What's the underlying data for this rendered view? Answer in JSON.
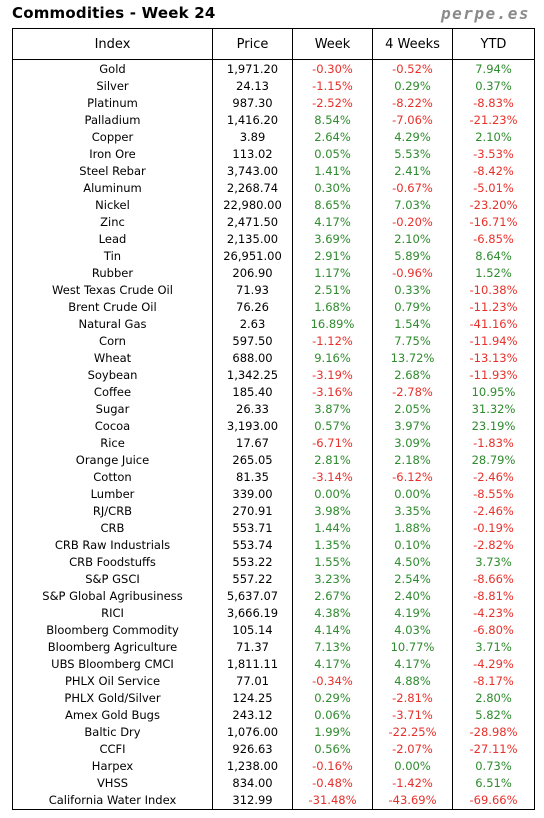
{
  "title": "Commodities - Week 24",
  "brand": "perpe.es",
  "colors": {
    "positive": "#2e8b2e",
    "negative": "#e8302a"
  },
  "headers": [
    "Index",
    "Price",
    "Week",
    "4 Weeks",
    "YTD"
  ],
  "rows": [
    [
      "Gold",
      "1,971.20",
      "-0.30%",
      "-0.52%",
      "7.94%"
    ],
    [
      "Silver",
      "24.13",
      "-1.15%",
      "0.29%",
      "0.37%"
    ],
    [
      "Platinum",
      "987.30",
      "-2.52%",
      "-8.22%",
      "-8.83%"
    ],
    [
      "Palladium",
      "1,416.20",
      "8.54%",
      "-7.06%",
      "-21.23%"
    ],
    [
      "Copper",
      "3.89",
      "2.64%",
      "4.29%",
      "2.10%"
    ],
    [
      "Iron Ore",
      "113.02",
      "0.05%",
      "5.53%",
      "-3.53%"
    ],
    [
      "Steel Rebar",
      "3,743.00",
      "1.41%",
      "2.41%",
      "-8.42%"
    ],
    [
      "Aluminum",
      "2,268.74",
      "0.30%",
      "-0.67%",
      "-5.01%"
    ],
    [
      "Nickel",
      "22,980.00",
      "8.65%",
      "7.03%",
      "-23.20%"
    ],
    [
      "Zinc",
      "2,471.50",
      "4.17%",
      "-0.20%",
      "-16.71%"
    ],
    [
      "Lead",
      "2,135.00",
      "3.69%",
      "2.10%",
      "-6.85%"
    ],
    [
      "Tin",
      "26,951.00",
      "2.91%",
      "5.89%",
      "8.64%"
    ],
    [
      "Rubber",
      "206.90",
      "1.17%",
      "-0.96%",
      "1.52%"
    ],
    [
      "West Texas Crude Oil",
      "71.93",
      "2.51%",
      "0.33%",
      "-10.38%"
    ],
    [
      "Brent Crude Oil",
      "76.26",
      "1.68%",
      "0.79%",
      "-11.23%"
    ],
    [
      "Natural Gas",
      "2.63",
      "16.89%",
      "1.54%",
      "-41.16%"
    ],
    [
      "Corn",
      "597.50",
      "-1.12%",
      "7.75%",
      "-11.94%"
    ],
    [
      "Wheat",
      "688.00",
      "9.16%",
      "13.72%",
      "-13.13%"
    ],
    [
      "Soybean",
      "1,342.25",
      "-3.19%",
      "2.68%",
      "-11.93%"
    ],
    [
      "Coffee",
      "185.40",
      "-3.16%",
      "-2.78%",
      "10.95%"
    ],
    [
      "Sugar",
      "26.33",
      "3.87%",
      "2.05%",
      "31.32%"
    ],
    [
      "Cocoa",
      "3,193.00",
      "0.57%",
      "3.97%",
      "23.19%"
    ],
    [
      "Rice",
      "17.67",
      "-6.71%",
      "3.09%",
      "-1.83%"
    ],
    [
      "Orange Juice",
      "265.05",
      "2.81%",
      "2.18%",
      "28.79%"
    ],
    [
      "Cotton",
      "81.35",
      "-3.14%",
      "-6.12%",
      "-2.46%"
    ],
    [
      "Lumber",
      "339.00",
      "0.00%",
      "0.00%",
      "-8.55%"
    ],
    [
      "RJ/CRB",
      "270.91",
      "3.98%",
      "3.35%",
      "-2.46%"
    ],
    [
      "CRB",
      "553.71",
      "1.44%",
      "1.88%",
      "-0.19%"
    ],
    [
      "CRB Raw Industrials",
      "553.74",
      "1.35%",
      "0.10%",
      "-2.82%"
    ],
    [
      "CRB Foodstuffs",
      "553.22",
      "1.55%",
      "4.50%",
      "3.73%"
    ],
    [
      "S&P GSCI",
      "557.22",
      "3.23%",
      "2.54%",
      "-8.66%"
    ],
    [
      "S&P Global Agribusiness",
      "5,637.07",
      "2.67%",
      "2.40%",
      "-8.81%"
    ],
    [
      "RICI",
      "3,666.19",
      "4.38%",
      "4.19%",
      "-4.23%"
    ],
    [
      "Bloomberg Commodity",
      "105.14",
      "4.14%",
      "4.03%",
      "-6.80%"
    ],
    [
      "Bloomberg Agriculture",
      "71.37",
      "7.13%",
      "10.77%",
      "3.71%"
    ],
    [
      "UBS Bloomberg CMCI",
      "1,811.11",
      "4.17%",
      "4.17%",
      "-4.29%"
    ],
    [
      "PHLX Oil Service",
      "77.01",
      "-0.34%",
      "4.88%",
      "-8.17%"
    ],
    [
      "PHLX Gold/Silver",
      "124.25",
      "0.29%",
      "-2.81%",
      "2.80%"
    ],
    [
      "Amex Gold Bugs",
      "243.12",
      "0.06%",
      "-3.71%",
      "5.82%"
    ],
    [
      "Baltic Dry",
      "1,076.00",
      "1.99%",
      "-22.25%",
      "-28.98%"
    ],
    [
      "CCFI",
      "926.63",
      "0.56%",
      "-2.07%",
      "-27.11%"
    ],
    [
      "Harpex",
      "1,238.00",
      "-0.16%",
      "0.00%",
      "0.73%"
    ],
    [
      "VHSS",
      "834.00",
      "-0.48%",
      "-1.42%",
      "6.51%"
    ],
    [
      "California Water Index",
      "312.99",
      "-31.48%",
      "-43.69%",
      "-69.66%"
    ]
  ]
}
